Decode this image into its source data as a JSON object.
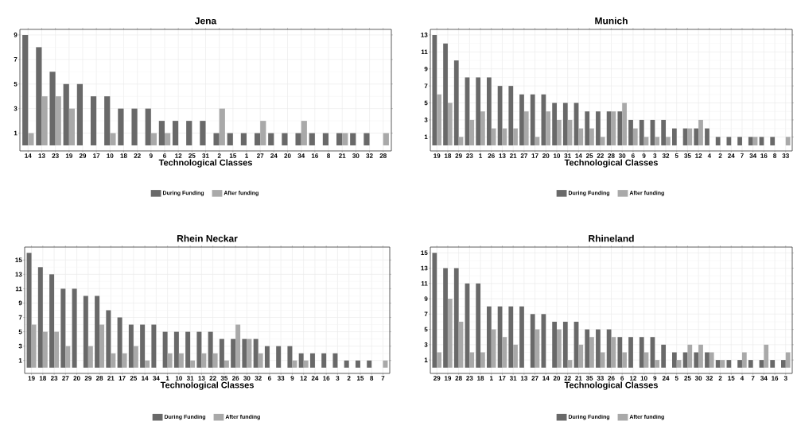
{
  "chart_data": [
    {
      "type": "bar",
      "title": "Jena",
      "xlabel": "Technological Classes",
      "legend": "bottom",
      "grid": true,
      "categories": [
        "14",
        "13",
        "23",
        "19",
        "29",
        "17",
        "10",
        "18",
        "22",
        "9",
        "6",
        "12",
        "25",
        "31",
        "2",
        "15",
        "1",
        "27",
        "24",
        "20",
        "34",
        "16",
        "8",
        "21",
        "30",
        "32",
        "28"
      ],
      "ylim": [
        -0.45,
        9.45
      ],
      "yticks": [
        1,
        3,
        5,
        7,
        9
      ],
      "series": [
        {
          "name": "During Funding",
          "color": "#696969",
          "values": [
            9,
            8,
            6,
            5,
            5,
            4,
            4,
            3,
            3,
            3,
            2,
            2,
            2,
            2,
            1,
            1,
            1,
            1,
            1,
            1,
            1,
            1,
            1,
            1,
            1,
            1,
            null
          ]
        },
        {
          "name": "After funding",
          "color": "#a9a9a9",
          "values": [
            1,
            4,
            4,
            3,
            null,
            null,
            1,
            null,
            null,
            1,
            1,
            null,
            null,
            null,
            3,
            null,
            null,
            2,
            null,
            null,
            2,
            null,
            null,
            1,
            null,
            null,
            1
          ]
        }
      ]
    },
    {
      "type": "bar",
      "title": "Munich",
      "xlabel": "Technological Classes",
      "legend": "bottom",
      "grid": true,
      "categories": [
        "19",
        "18",
        "29",
        "23",
        "1",
        "26",
        "13",
        "21",
        "27",
        "17",
        "20",
        "10",
        "31",
        "14",
        "25",
        "22",
        "28",
        "30",
        "6",
        "9",
        "3",
        "32",
        "5",
        "35",
        "12",
        "4",
        "2",
        "24",
        "7",
        "34",
        "16",
        "8",
        "33"
      ],
      "ylim": [
        -0.65,
        13.65
      ],
      "yticks": [
        1,
        3,
        5,
        7,
        9,
        11,
        13
      ],
      "series": [
        {
          "name": "During Funding",
          "color": "#696969",
          "values": [
            13,
            12,
            10,
            8,
            8,
            8,
            7,
            7,
            6,
            6,
            6,
            5,
            5,
            5,
            4,
            4,
            4,
            4,
            3,
            3,
            3,
            3,
            2,
            2,
            2,
            2,
            1,
            1,
            1,
            1,
            1,
            1,
            null
          ]
        },
        {
          "name": "After funding",
          "color": "#a9a9a9",
          "values": [
            6,
            5,
            1,
            3,
            4,
            2,
            2,
            2,
            4,
            1,
            4,
            3,
            3,
            2,
            2,
            1,
            4,
            5,
            2,
            1,
            1,
            1,
            null,
            2,
            3,
            null,
            null,
            null,
            null,
            1,
            null,
            null,
            1
          ]
        }
      ]
    },
    {
      "type": "bar",
      "title": "Rhein Neckar",
      "xlabel": "Technological Classes",
      "legend": "bottom",
      "grid": true,
      "categories": [
        "19",
        "18",
        "23",
        "27",
        "20",
        "29",
        "28",
        "21",
        "17",
        "25",
        "14",
        "34",
        "1",
        "10",
        "31",
        "13",
        "22",
        "35",
        "26",
        "30",
        "32",
        "6",
        "33",
        "9",
        "12",
        "24",
        "16",
        "3",
        "2",
        "15",
        "8",
        "7"
      ],
      "ylim": [
        -0.8,
        16.8
      ],
      "yticks": [
        1,
        3,
        5,
        7,
        9,
        11,
        13,
        15
      ],
      "series": [
        {
          "name": "During Funding",
          "color": "#696969",
          "values": [
            16,
            14,
            13,
            11,
            11,
            10,
            10,
            8,
            7,
            6,
            6,
            6,
            5,
            5,
            5,
            5,
            5,
            4,
            4,
            4,
            4,
            3,
            3,
            3,
            2,
            2,
            2,
            2,
            1,
            1,
            1,
            null
          ]
        },
        {
          "name": "After funding",
          "color": "#a9a9a9",
          "values": [
            6,
            5,
            5,
            3,
            null,
            3,
            6,
            2,
            2,
            3,
            1,
            null,
            2,
            2,
            1,
            2,
            2,
            1,
            6,
            4,
            2,
            null,
            null,
            1,
            1,
            null,
            null,
            null,
            null,
            null,
            null,
            1
          ]
        }
      ]
    },
    {
      "type": "bar",
      "title": "Rhineland",
      "xlabel": "Technological Classes",
      "legend": "bottom",
      "grid": true,
      "categories": [
        "29",
        "19",
        "28",
        "23",
        "18",
        "1",
        "17",
        "31",
        "13",
        "27",
        "14",
        "20",
        "22",
        "21",
        "35",
        "33",
        "26",
        "6",
        "12",
        "10",
        "9",
        "24",
        "5",
        "25",
        "30",
        "32",
        "2",
        "15",
        "4",
        "7",
        "34",
        "16",
        "3"
      ],
      "ylim": [
        -0.75,
        15.75
      ],
      "yticks": [
        1,
        3,
        5,
        7,
        9,
        11,
        13,
        15
      ],
      "series": [
        {
          "name": "During Funding",
          "color": "#696969",
          "values": [
            15,
            13,
            13,
            11,
            11,
            8,
            8,
            8,
            8,
            7,
            7,
            6,
            6,
            6,
            5,
            5,
            5,
            4,
            4,
            4,
            4,
            3,
            2,
            2,
            2,
            2,
            1,
            1,
            1,
            1,
            1,
            1,
            1
          ]
        },
        {
          "name": "After funding",
          "color": "#a9a9a9",
          "values": [
            2,
            9,
            6,
            2,
            2,
            5,
            4,
            3,
            null,
            5,
            null,
            5,
            1,
            3,
            4,
            2,
            4,
            2,
            null,
            2,
            1,
            null,
            1,
            3,
            3,
            2,
            1,
            null,
            2,
            null,
            3,
            null,
            2
          ]
        }
      ]
    }
  ]
}
